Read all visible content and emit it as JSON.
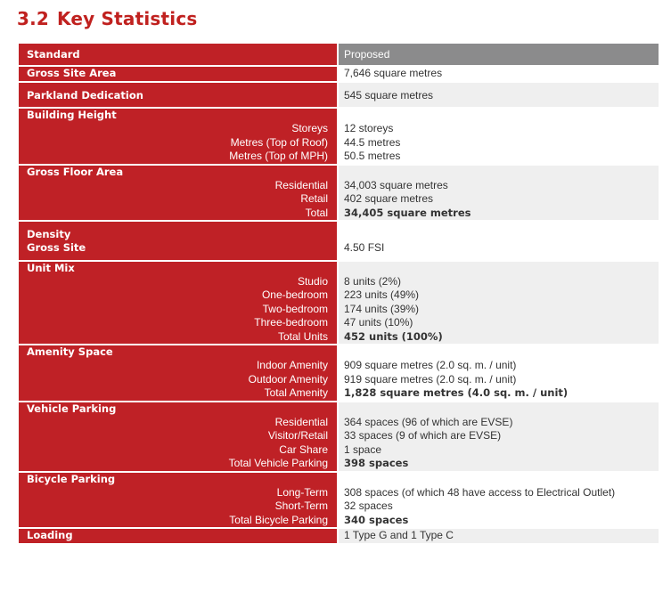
{
  "section": {
    "number": "3.2",
    "title": "Key Statistics"
  },
  "table": {
    "header": {
      "left": "Standard",
      "right": "Proposed"
    },
    "rows": [
      {
        "label": "Gross Site Area",
        "value": "7,646 square metres"
      },
      {
        "label": "Parkland Dedication",
        "value": "545 square metres"
      },
      {
        "label": "Building Height",
        "items": [
          {
            "label": "Storeys",
            "value": "12 storeys"
          },
          {
            "label": "Metres (Top of Roof)",
            "value": "44.5 metres"
          },
          {
            "label": "Metres (Top of MPH)",
            "value": "50.5 metres"
          }
        ]
      },
      {
        "label": "Gross Floor Area",
        "items": [
          {
            "label": "Residential",
            "value": "34,003 square metres"
          },
          {
            "label": "Retail",
            "value": "402 square metres"
          },
          {
            "label": "Total",
            "value": "34,405 square metres"
          }
        ]
      },
      {
        "label": "Density",
        "label2": "Gross Site",
        "value": "4.50 FSI"
      },
      {
        "label": "Unit Mix",
        "items": [
          {
            "label": "Studio",
            "value": "8 units (2%)"
          },
          {
            "label": "One-bedroom",
            "value": "223 units (49%)"
          },
          {
            "label": "Two-bedroom",
            "value": "174 units (39%)"
          },
          {
            "label": "Three-bedroom",
            "value": "47 units (10%)"
          },
          {
            "label": "Total Units",
            "value": "452 units (100%)"
          }
        ]
      },
      {
        "label": "Amenity Space",
        "items": [
          {
            "label": "Indoor Amenity",
            "value": "909 square metres (2.0 sq. m. / unit)"
          },
          {
            "label": "Outdoor Amenity",
            "value": "919 square metres (2.0 sq. m. / unit)"
          },
          {
            "label": "Total Amenity",
            "value": "1,828 square metres (4.0 sq. m. / unit)"
          }
        ]
      },
      {
        "label": "Vehicle Parking",
        "items": [
          {
            "label": "Residential",
            "value": "364 spaces (96 of which are EVSE)"
          },
          {
            "label": "Visitor/Retail",
            "value": "33 spaces (9 of which are EVSE)"
          },
          {
            "label": "Car Share",
            "value": "1 space"
          },
          {
            "label": "Total Vehicle Parking",
            "value": "398 spaces"
          }
        ]
      },
      {
        "label": "Bicycle Parking",
        "items": [
          {
            "label": "Long-Term",
            "value": "308 spaces (of which 48 have access to Electrical Outlet)"
          },
          {
            "label": "Short-Term",
            "value": "32 spaces"
          },
          {
            "label": "Total Bicycle Parking",
            "value": "340 spaces"
          }
        ]
      },
      {
        "label": "Loading",
        "value": "1 Type G and 1 Type C"
      }
    ]
  }
}
